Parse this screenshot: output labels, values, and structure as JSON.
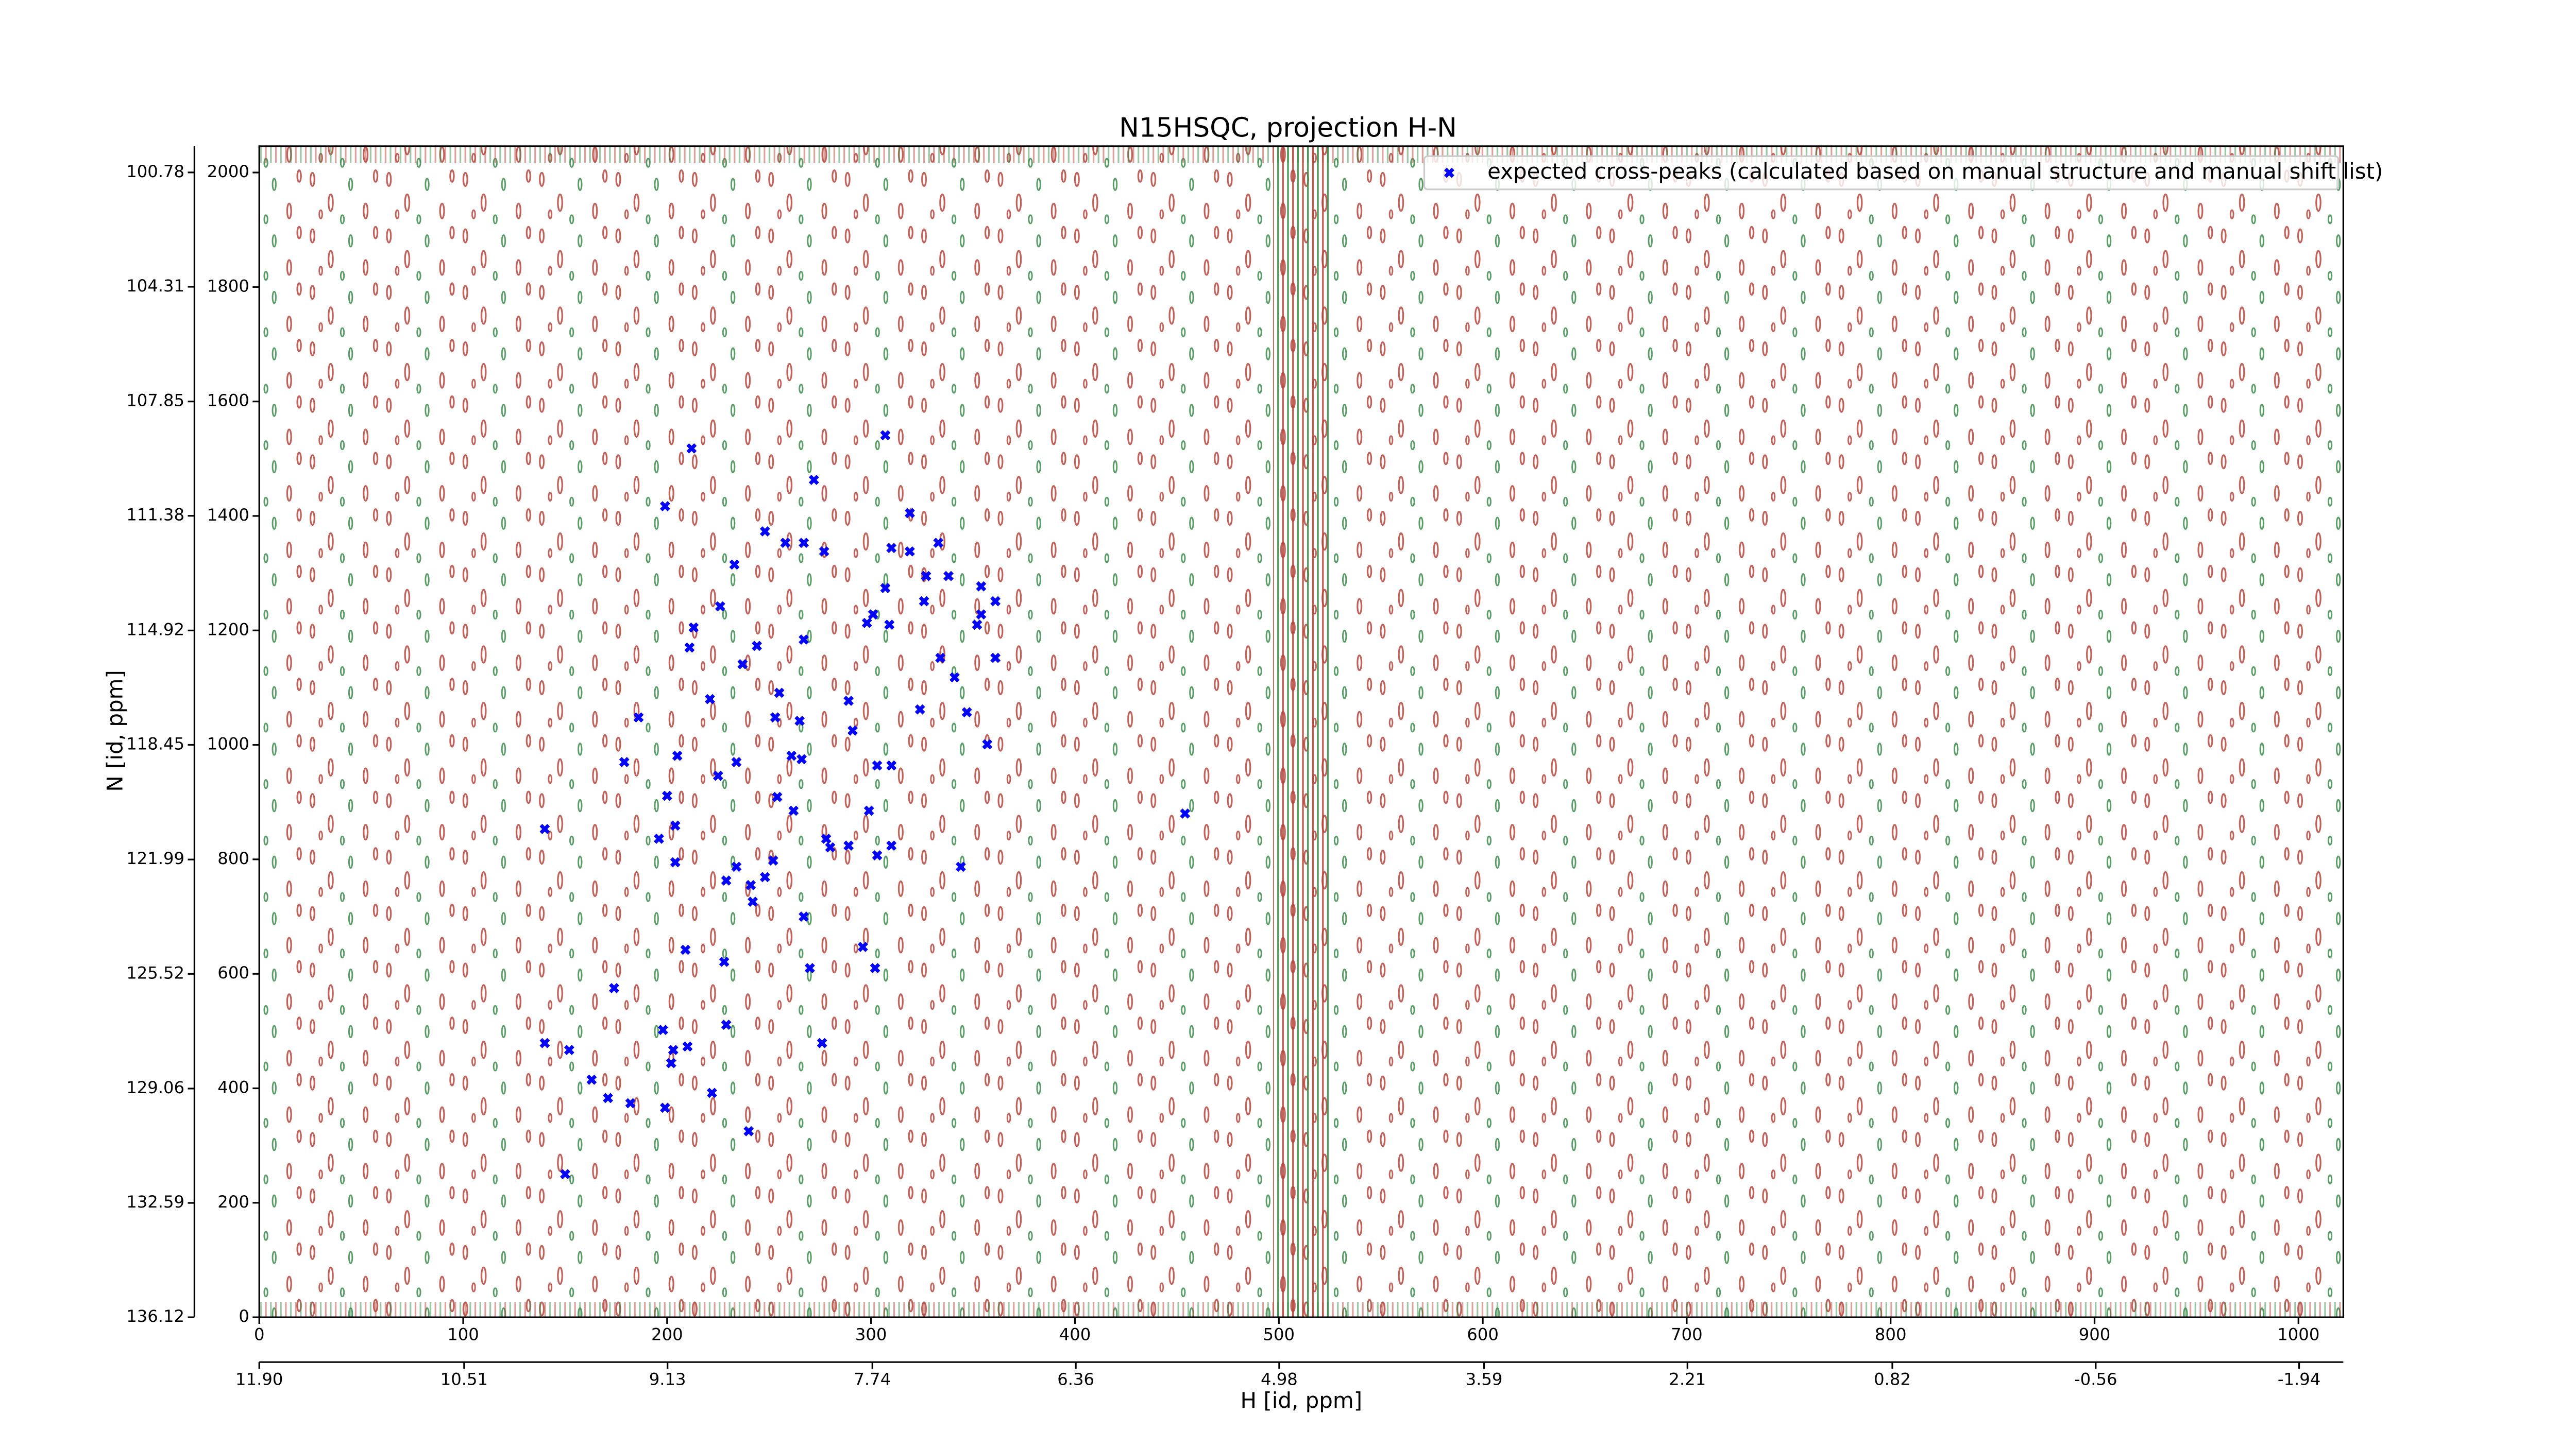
{
  "chart_data": {
    "type": "scatter",
    "title": "N15HSQC, projection H-N",
    "x_label": "H [id, ppm]",
    "y_label": "N [id, ppm]",
    "xlim": [
      0,
      1022
    ],
    "ylim": [
      0,
      2046
    ],
    "xticks": [
      0,
      100,
      200,
      300,
      400,
      500,
      600,
      700,
      800,
      900,
      1000
    ],
    "yticks": [
      0,
      200,
      400,
      600,
      800,
      1000,
      1200,
      1400,
      1600,
      1800,
      2000
    ],
    "x2lim": [
      11.9,
      -2.24
    ],
    "x2ticks": [
      {
        "value": 11.9,
        "label": "11.90"
      },
      10.51,
      9.13,
      7.74,
      6.36,
      4.98,
      3.59,
      2.21,
      0.82,
      -0.56,
      -1.94
    ],
    "y2lim": [
      136.12,
      99.97
    ],
    "y2ticks": [
      136.12,
      132.59,
      129.06,
      125.52,
      121.99,
      118.45,
      114.92,
      111.38,
      107.85,
      104.31,
      100.78
    ],
    "legend": "upper right",
    "series": [
      {
        "name": "expected cross-peaks (calculated based on manual structure and manual shift list)",
        "color": "#0000ff",
        "x": [
          212,
          307,
          272,
          199,
          319,
          248,
          258,
          267,
          277,
          310,
          319,
          333,
          233,
          327,
          338,
          307,
          354,
          226,
          326,
          361,
          301,
          354,
          298,
          309,
          352,
          213,
          267,
          244,
          211,
          334,
          361,
          237,
          341,
          255,
          221,
          289,
          324,
          347,
          186,
          253,
          265,
          291,
          357,
          205,
          261,
          266,
          179,
          234,
          303,
          310,
          225,
          254,
          200,
          299,
          262,
          454,
          140,
          204,
          196,
          278,
          280,
          289,
          310,
          303,
          204,
          252,
          234,
          344,
          229,
          248,
          241,
          242,
          267,
          296,
          209,
          228,
          270,
          302,
          174,
          229,
          198,
          276,
          140,
          152,
          210,
          203,
          202,
          163,
          171,
          222,
          182,
          199,
          240,
          150
        ],
        "y": [
          1518,
          1541,
          1463,
          1417,
          1405,
          1373,
          1353,
          1353,
          1338,
          1344,
          1338,
          1353,
          1315,
          1295,
          1295,
          1274,
          1277,
          1242,
          1251,
          1251,
          1228,
          1228,
          1213,
          1210,
          1210,
          1205,
          1184,
          1173,
          1170,
          1152,
          1152,
          1141,
          1118,
          1091,
          1080,
          1077,
          1062,
          1057,
          1048,
          1048,
          1042,
          1025,
          1001,
          981,
          981,
          975,
          970,
          970,
          964,
          964,
          946,
          909,
          911,
          885,
          885,
          880,
          853,
          859,
          836,
          836,
          821,
          824,
          824,
          807,
          795,
          798,
          787,
          787,
          763,
          769,
          755,
          726,
          700,
          647,
          642,
          621,
          610,
          610,
          575,
          511,
          502,
          479,
          479,
          467,
          473,
          467,
          444,
          415,
          383,
          392,
          374,
          366,
          325,
          250
        ]
      }
    ]
  }
}
